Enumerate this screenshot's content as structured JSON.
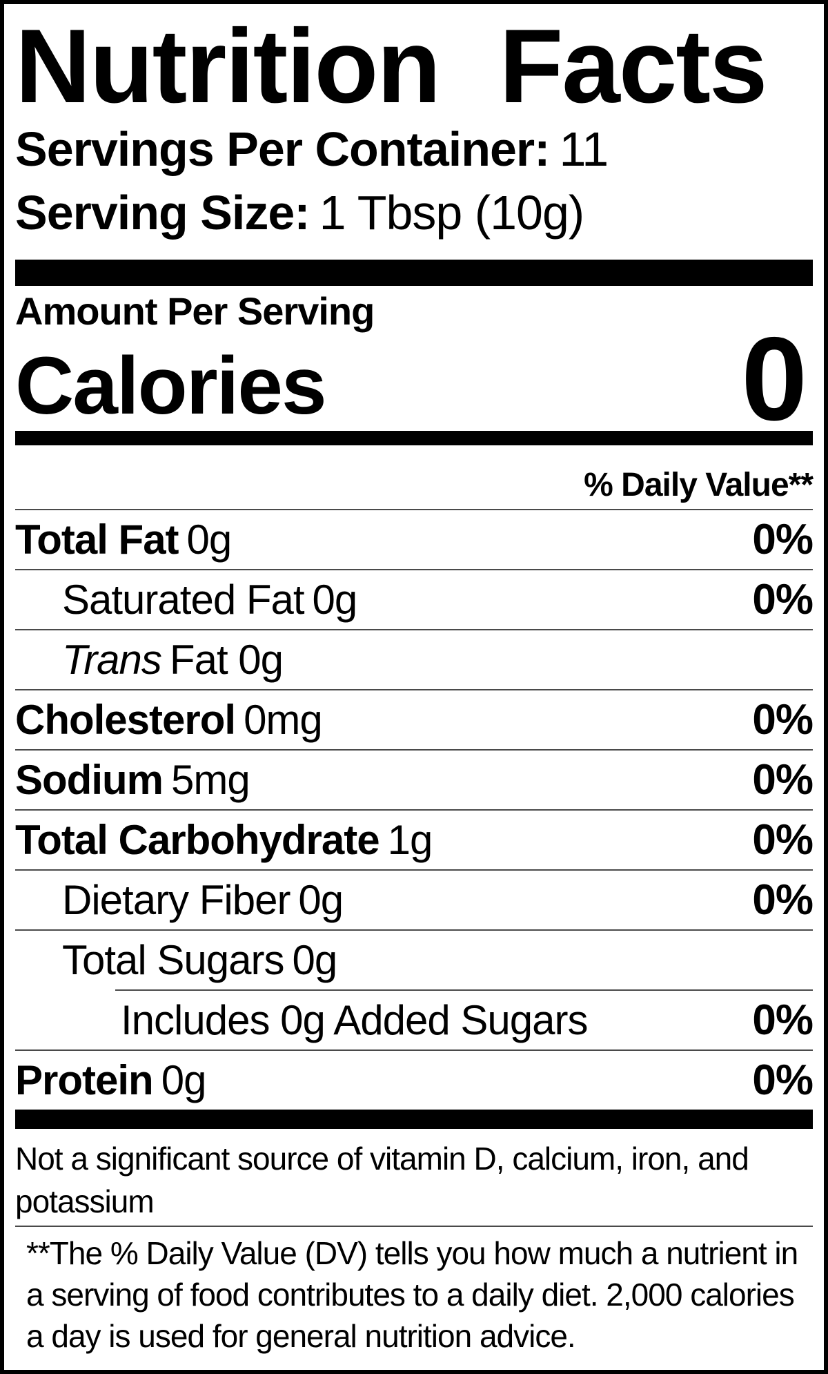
{
  "label": {
    "title": "Nutrition Facts",
    "servings_per_container": {
      "label": "Servings Per Container:",
      "value": "11"
    },
    "serving_size": {
      "label": "Serving Size:",
      "value": "1 Tbsp (10g)"
    },
    "amount_per_serving": "Amount Per Serving",
    "calories": {
      "label": "Calories",
      "value": "0"
    },
    "daily_value_header": "% Daily Value**",
    "rows": [
      {
        "name": "Total Fat",
        "amount": "0g",
        "dv": "0%"
      },
      {
        "name": "Saturated Fat",
        "amount": "0g",
        "dv": "0%"
      },
      {
        "name": "Trans",
        "amount": "Fat 0g",
        "dv": ""
      },
      {
        "name": "Cholesterol",
        "amount": "0mg",
        "dv": "0%"
      },
      {
        "name": "Sodium",
        "amount": "5mg",
        "dv": "0%"
      },
      {
        "name": "Total Carbohydrate",
        "amount": "1g",
        "dv": "0%"
      },
      {
        "name": "Dietary Fiber",
        "amount": "0g",
        "dv": "0%"
      },
      {
        "name": "Total Sugars",
        "amount": "0g",
        "dv": ""
      },
      {
        "name": "Includes 0g Added Sugars",
        "amount": "",
        "dv": "0%"
      },
      {
        "name": "Protein",
        "amount": "0g",
        "dv": "0%"
      }
    ],
    "not_significant_note": "Not a significant source of vitamin D, calcium, iron, and potassium",
    "footnote": "**The % Daily Value (DV) tells you how much a nutrient in a serving of food contributes to a daily diet. 2,000 calories a day is used for general nutrition advice.",
    "colors": {
      "text": "#000000",
      "divider": "#4a4a4a",
      "background": "#ffffff"
    }
  }
}
